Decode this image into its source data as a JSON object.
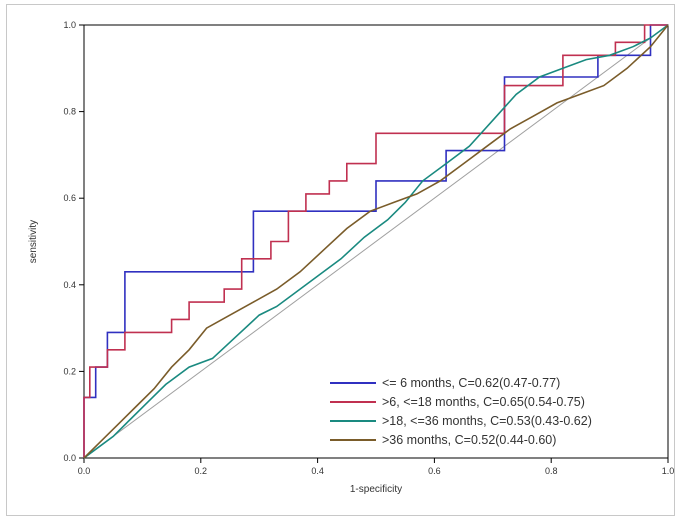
{
  "chart_data": {
    "type": "line",
    "title": "",
    "xlabel": "1-specificity",
    "ylabel": "sensitivity",
    "xlim": [
      0,
      1
    ],
    "ylim": [
      0,
      1
    ],
    "x_ticks": [
      "0.0",
      "0.2",
      "0.4",
      "0.6",
      "0.8",
      "1.0"
    ],
    "y_ticks": [
      "0.0",
      "0.2",
      "0.4",
      "0.6",
      "0.8",
      "1.0"
    ],
    "grid": false,
    "legend_position": "bottom-right",
    "reference_line": {
      "x": [
        0,
        1
      ],
      "y": [
        0,
        1
      ],
      "color": "#a0a0a0"
    },
    "series": [
      {
        "name": "<= 6 months, C=0.62(0.47-0.77)",
        "color": "#3030c0",
        "x": [
          0,
          0,
          0.02,
          0.02,
          0.04,
          0.04,
          0.07,
          0.07,
          0.29,
          0.29,
          0.5,
          0.5,
          0.62,
          0.62,
          0.72,
          0.72,
          0.82,
          0.82,
          0.88,
          0.88,
          0.97,
          0.97,
          1.0
        ],
        "y": [
          0,
          0.14,
          0.14,
          0.21,
          0.21,
          0.29,
          0.29,
          0.43,
          0.43,
          0.57,
          0.57,
          0.64,
          0.64,
          0.71,
          0.71,
          0.88,
          0.88,
          0.88,
          0.88,
          0.93,
          0.93,
          1.0,
          1.0
        ]
      },
      {
        "name": ">6, <=18 months, C=0.65(0.54-0.75)",
        "color": "#c03050",
        "x": [
          0,
          0,
          0.01,
          0.01,
          0.04,
          0.04,
          0.07,
          0.07,
          0.15,
          0.15,
          0.18,
          0.18,
          0.24,
          0.24,
          0.27,
          0.27,
          0.32,
          0.32,
          0.35,
          0.35,
          0.38,
          0.38,
          0.42,
          0.42,
          0.45,
          0.45,
          0.5,
          0.5,
          0.72,
          0.72,
          0.82,
          0.82,
          0.91,
          0.91,
          0.96,
          0.96,
          1.0
        ],
        "y": [
          0,
          0.14,
          0.14,
          0.21,
          0.21,
          0.25,
          0.25,
          0.29,
          0.29,
          0.32,
          0.32,
          0.36,
          0.36,
          0.39,
          0.39,
          0.46,
          0.46,
          0.5,
          0.5,
          0.57,
          0.57,
          0.61,
          0.61,
          0.64,
          0.64,
          0.68,
          0.68,
          0.75,
          0.75,
          0.86,
          0.86,
          0.93,
          0.93,
          0.96,
          0.96,
          1.0,
          1.0
        ]
      },
      {
        "name": ">18, <=36 months, C=0.53(0.43-0.62)",
        "color": "#1a8a80",
        "x": [
          0,
          0.02,
          0.05,
          0.08,
          0.11,
          0.14,
          0.18,
          0.22,
          0.26,
          0.3,
          0.33,
          0.36,
          0.4,
          0.44,
          0.48,
          0.52,
          0.55,
          0.58,
          0.62,
          0.66,
          0.7,
          0.74,
          0.78,
          0.82,
          0.86,
          0.9,
          0.94,
          0.97,
          1.0
        ],
        "y": [
          0,
          0.02,
          0.05,
          0.09,
          0.13,
          0.17,
          0.21,
          0.23,
          0.28,
          0.33,
          0.35,
          0.38,
          0.42,
          0.46,
          0.51,
          0.55,
          0.59,
          0.64,
          0.68,
          0.72,
          0.78,
          0.84,
          0.88,
          0.9,
          0.92,
          0.93,
          0.95,
          0.97,
          1.0
        ]
      },
      {
        "name": ">36 months, C=0.52(0.44-0.60)",
        "color": "#7a5c2a",
        "x": [
          0,
          0.03,
          0.06,
          0.09,
          0.12,
          0.15,
          0.18,
          0.21,
          0.25,
          0.29,
          0.33,
          0.37,
          0.41,
          0.45,
          0.49,
          0.53,
          0.57,
          0.61,
          0.65,
          0.69,
          0.73,
          0.77,
          0.81,
          0.85,
          0.89,
          0.93,
          0.97,
          1.0
        ],
        "y": [
          0,
          0.04,
          0.08,
          0.12,
          0.16,
          0.21,
          0.25,
          0.3,
          0.33,
          0.36,
          0.39,
          0.43,
          0.48,
          0.53,
          0.57,
          0.59,
          0.61,
          0.64,
          0.68,
          0.72,
          0.76,
          0.79,
          0.82,
          0.84,
          0.86,
          0.9,
          0.95,
          1.0
        ]
      }
    ]
  }
}
